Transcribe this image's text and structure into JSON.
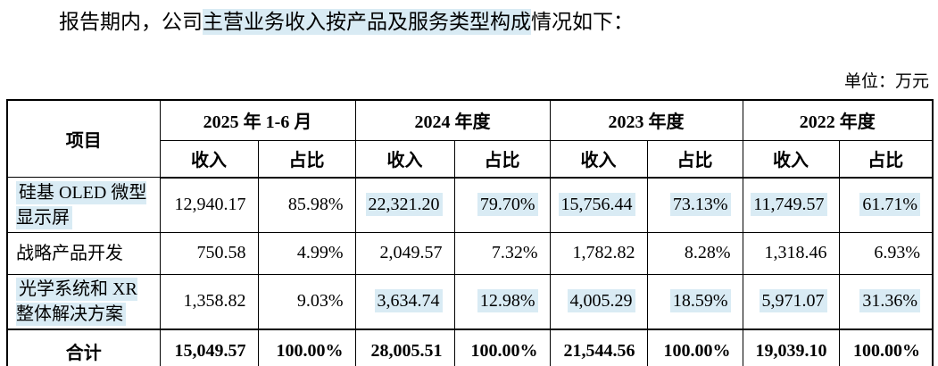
{
  "title": {
    "prefix": "报告期内，公司",
    "highlight": "主营业务收入按产品及服务类型构成",
    "suffix": "情况如下："
  },
  "unit_label": "单位：万元",
  "colors": {
    "highlight": "#d9ebf4",
    "border": "#000000",
    "text": "#000000"
  },
  "table": {
    "item_header": "项目",
    "period_headers": [
      "2025 年 1-6 月",
      "2024 年度",
      "2023 年度",
      "2022 年度"
    ],
    "sub_headers": {
      "revenue": "收入",
      "ratio": "占比"
    },
    "rows": [
      {
        "name": "硅基 OLED 微型显示屏",
        "name_highlight": true,
        "cells": [
          {
            "v": "12,940.17",
            "hl": false
          },
          {
            "v": "85.98%",
            "hl": false
          },
          {
            "v": "22,321.20",
            "hl": true
          },
          {
            "v": "79.70%",
            "hl": true
          },
          {
            "v": "15,756.44",
            "hl": true
          },
          {
            "v": "73.13%",
            "hl": true
          },
          {
            "v": "11,749.57",
            "hl": true
          },
          {
            "v": "61.71%",
            "hl": true
          }
        ]
      },
      {
        "name": "战略产品开发",
        "name_highlight": false,
        "cells": [
          {
            "v": "750.58",
            "hl": false
          },
          {
            "v": "4.99%",
            "hl": false
          },
          {
            "v": "2,049.57",
            "hl": false
          },
          {
            "v": "7.32%",
            "hl": false
          },
          {
            "v": "1,782.82",
            "hl": false
          },
          {
            "v": "8.28%",
            "hl": false
          },
          {
            "v": "1,318.46",
            "hl": false
          },
          {
            "v": "6.93%",
            "hl": false
          }
        ]
      },
      {
        "name": "光学系统和 XR 整体解决方案",
        "name_highlight": true,
        "cells": [
          {
            "v": "1,358.82",
            "hl": false
          },
          {
            "v": "9.03%",
            "hl": false
          },
          {
            "v": "3,634.74",
            "hl": true
          },
          {
            "v": "12.98%",
            "hl": true
          },
          {
            "v": "4,005.29",
            "hl": true
          },
          {
            "v": "18.59%",
            "hl": true
          },
          {
            "v": "5,971.07",
            "hl": true
          },
          {
            "v": "31.36%",
            "hl": true
          }
        ]
      }
    ],
    "total_row": {
      "name": "合计",
      "cells": [
        "15,049.57",
        "100.00%",
        "28,005.51",
        "100.00%",
        "21,544.56",
        "100.00%",
        "19,039.10",
        "100.00%"
      ]
    }
  }
}
